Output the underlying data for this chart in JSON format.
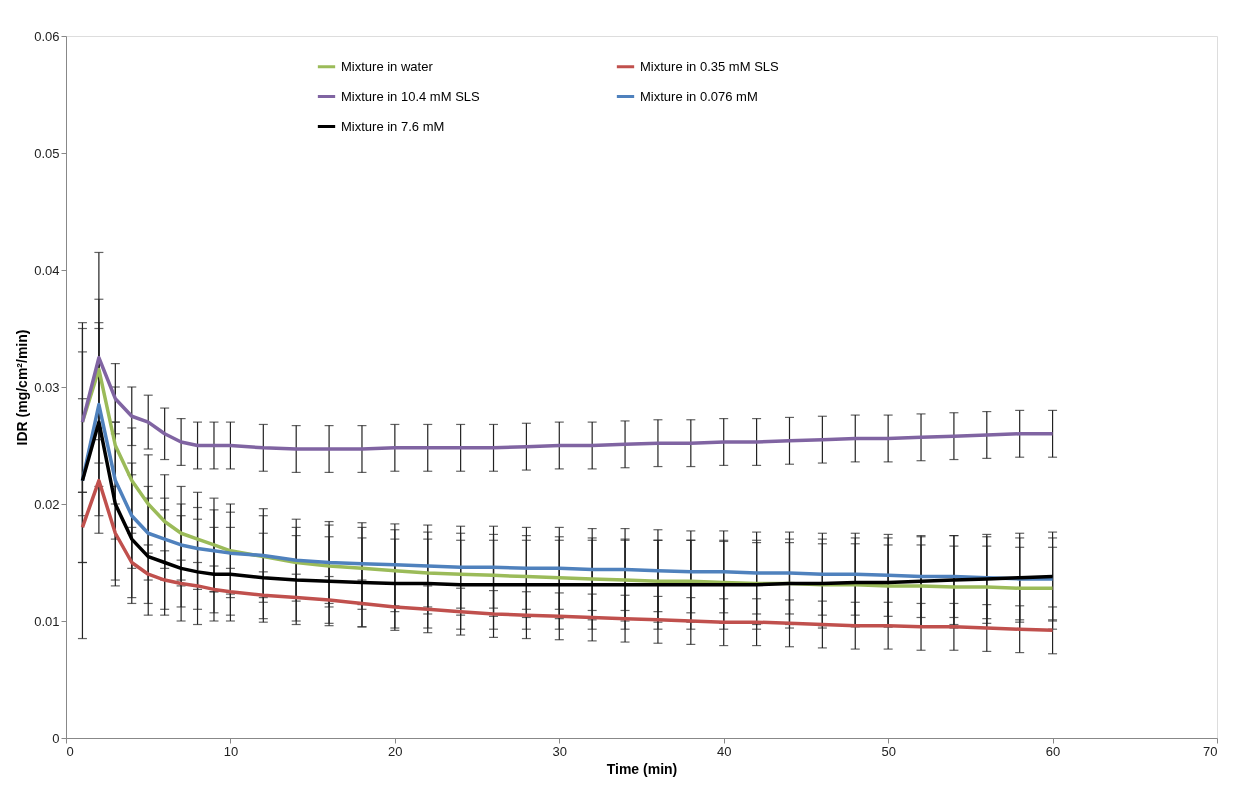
{
  "chart_data": {
    "type": "line",
    "xlabel": "Time (min)",
    "ylabel": "IDR (mg/cm²/min)",
    "x": [
      1,
      2,
      3,
      4,
      5,
      6,
      7,
      8,
      9,
      10,
      12,
      14,
      16,
      18,
      20,
      22,
      24,
      26,
      28,
      30,
      32,
      34,
      36,
      38,
      40,
      42,
      44,
      46,
      48,
      50,
      52,
      54,
      56,
      58,
      60
    ],
    "xlim": [
      0,
      70
    ],
    "xticks": [
      0,
      10,
      20,
      30,
      40,
      50,
      60,
      70
    ],
    "ylim": [
      0,
      0.06
    ],
    "yticks": [
      0,
      0.01,
      0.02,
      0.03,
      0.04,
      0.05,
      0.06
    ],
    "legend": "top",
    "grid": false,
    "series": [
      {
        "name": "Mixture in water",
        "color": "#9bbb59",
        "values": [
          0.027,
          0.0315,
          0.025,
          0.022,
          0.02,
          0.0185,
          0.0175,
          0.017,
          0.0165,
          0.016,
          0.0155,
          0.015,
          0.0147,
          0.0145,
          0.0143,
          0.0141,
          0.014,
          0.0139,
          0.0138,
          0.0137,
          0.0136,
          0.0135,
          0.0134,
          0.0134,
          0.0133,
          0.0132,
          0.0132,
          0.0131,
          0.0131,
          0.013,
          0.013,
          0.0129,
          0.0129,
          0.0128,
          0.0128
        ],
        "errors": [
          0.008,
          0.006,
          0.005,
          0.0045,
          0.0042,
          0.004,
          0.004,
          0.004,
          0.004,
          0.004,
          0.0035,
          0.003,
          0.0035,
          0.0035,
          0.0035,
          0.0035,
          0.0035,
          0.0035,
          0.0035,
          0.0035,
          0.0035,
          0.0035,
          0.0035,
          0.0035,
          0.0035,
          0.0035,
          0.0035,
          0.0035,
          0.0035,
          0.0035,
          0.0035,
          0.0035,
          0.0035,
          0.0035,
          0.0035
        ]
      },
      {
        "name": "Mixture in 0.35 mM SLS",
        "color": "#c0504d",
        "values": [
          0.018,
          0.022,
          0.0175,
          0.015,
          0.014,
          0.0135,
          0.0132,
          0.013,
          0.0127,
          0.0125,
          0.0122,
          0.012,
          0.0118,
          0.0115,
          0.0112,
          0.011,
          0.0108,
          0.0106,
          0.0105,
          0.0104,
          0.0103,
          0.0102,
          0.0101,
          0.01,
          0.0099,
          0.0099,
          0.0098,
          0.0097,
          0.0096,
          0.0096,
          0.0095,
          0.0095,
          0.0094,
          0.0093,
          0.0092
        ],
        "errors": [
          0.003,
          0.0045,
          0.004,
          0.003,
          0.0025,
          0.0025,
          0.002,
          0.002,
          0.002,
          0.002,
          0.002,
          0.002,
          0.002,
          0.002,
          0.002,
          0.002,
          0.002,
          0.002,
          0.002,
          0.002,
          0.002,
          0.002,
          0.002,
          0.002,
          0.002,
          0.002,
          0.002,
          0.002,
          0.002,
          0.002,
          0.002,
          0.002,
          0.002,
          0.002,
          0.002
        ]
      },
      {
        "name": "Mixture in 10.4 mM SLS",
        "color": "#8064a2",
        "values": [
          0.027,
          0.0325,
          0.029,
          0.0275,
          0.027,
          0.026,
          0.0253,
          0.025,
          0.025,
          0.025,
          0.0248,
          0.0247,
          0.0247,
          0.0247,
          0.0248,
          0.0248,
          0.0248,
          0.0248,
          0.0249,
          0.025,
          0.025,
          0.0251,
          0.0252,
          0.0252,
          0.0253,
          0.0253,
          0.0254,
          0.0255,
          0.0256,
          0.0256,
          0.0257,
          0.0258,
          0.0259,
          0.026,
          0.026
        ],
        "errors": [
          0.006,
          0.009,
          0.003,
          0.0025,
          0.0023,
          0.0022,
          0.002,
          0.002,
          0.002,
          0.002,
          0.002,
          0.002,
          0.002,
          0.002,
          0.002,
          0.002,
          0.002,
          0.002,
          0.002,
          0.002,
          0.002,
          0.002,
          0.002,
          0.002,
          0.002,
          0.002,
          0.002,
          0.002,
          0.002,
          0.002,
          0.002,
          0.002,
          0.002,
          0.002,
          0.002
        ]
      },
      {
        "name": "Mixture in 0.076 mM",
        "color": "#4f81bd",
        "values": [
          0.022,
          0.0285,
          0.022,
          0.019,
          0.0175,
          0.017,
          0.0165,
          0.0162,
          0.016,
          0.0158,
          0.0156,
          0.0152,
          0.015,
          0.0149,
          0.0148,
          0.0147,
          0.0146,
          0.0146,
          0.0145,
          0.0145,
          0.0144,
          0.0144,
          0.0143,
          0.0142,
          0.0142,
          0.0141,
          0.0141,
          0.014,
          0.014,
          0.0139,
          0.0138,
          0.0138,
          0.0137,
          0.0136,
          0.0136
        ],
        "errors": [
          0.007,
          0.007,
          0.005,
          0.0045,
          0.004,
          0.0035,
          0.0035,
          0.0035,
          0.0035,
          0.0035,
          0.004,
          0.0035,
          0.0035,
          0.0035,
          0.0035,
          0.0035,
          0.0035,
          0.0035,
          0.0035,
          0.0035,
          0.0035,
          0.0035,
          0.0035,
          0.0035,
          0.0035,
          0.0035,
          0.0035,
          0.0035,
          0.0035,
          0.0035,
          0.0035,
          0.0035,
          0.0035,
          0.0035,
          0.0035
        ]
      },
      {
        "name": "Mixture in 7.6 mM",
        "color": "#000000",
        "values": [
          0.022,
          0.027,
          0.02,
          0.017,
          0.0155,
          0.015,
          0.0145,
          0.0142,
          0.014,
          0.014,
          0.0137,
          0.0135,
          0.0134,
          0.0133,
          0.0132,
          0.0132,
          0.0131,
          0.0131,
          0.0131,
          0.0131,
          0.0131,
          0.0131,
          0.0131,
          0.0131,
          0.0131,
          0.0131,
          0.0132,
          0.0132,
          0.0133,
          0.0133,
          0.0134,
          0.0135,
          0.0136,
          0.0137,
          0.0138
        ],
        "errors": [
          0.0135,
          0.008,
          0.007,
          0.0055,
          0.005,
          0.0045,
          0.0045,
          0.0045,
          0.004,
          0.004,
          0.0038,
          0.0038,
          0.0038,
          0.0038,
          0.0038,
          0.0038,
          0.0038,
          0.0038,
          0.0038,
          0.0038,
          0.0038,
          0.0038,
          0.0038,
          0.0038,
          0.0038,
          0.0038,
          0.0038,
          0.0038,
          0.0038,
          0.0038,
          0.0038,
          0.0038,
          0.0038,
          0.0038,
          0.0038
        ]
      }
    ]
  }
}
